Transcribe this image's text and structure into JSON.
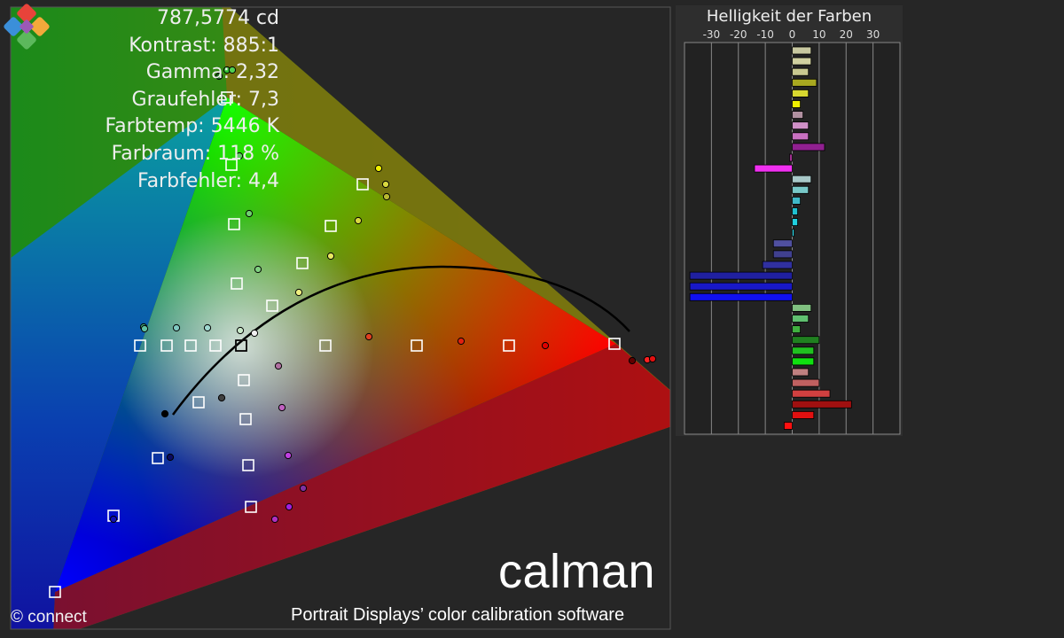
{
  "stats": {
    "luminance": "787,5774 cd",
    "contrast": "Kontrast: 885:1",
    "gamma": "Gamma: 2,32",
    "gray_error": "Graufehler: 7,3",
    "color_temp": "Farbtemp: 5446 K",
    "color_space": "Farbraum: 118 %",
    "color_error": "Farbfehler: 4,4"
  },
  "copyright": "© connect",
  "brand": {
    "name": "calman",
    "tagline": "Portrait Displays’ color calibration software",
    "logo_colors": [
      "#e8433a",
      "#f2a93b",
      "#5cb85c",
      "#3b8fd9",
      "#9b59b6"
    ]
  },
  "chart_data": [
    {
      "type": "scatter",
      "title": "",
      "description_kind": "CIE chromaticity gamut diagram",
      "series": [
        {
          "name": "",
          "marker": "open-square",
          "color": "#ffffff"
        },
        {
          "name": "",
          "marker": "filled-circle",
          "color": "measured"
        }
      ]
    },
    {
      "type": "bar",
      "title": "Helligkeit der Farben",
      "orientation": "horizontal",
      "xlim": [
        -40,
        40
      ],
      "xticks": [
        -30,
        -20,
        -10,
        0,
        10,
        20,
        30
      ],
      "grid": true,
      "values": [
        7,
        7,
        6,
        9,
        6,
        3,
        4,
        6,
        6,
        12,
        -1,
        -14,
        7,
        6,
        3,
        2,
        2,
        0,
        -7,
        -7,
        -11,
        -38,
        -38,
        -38,
        7,
        6,
        3,
        10,
        8,
        8,
        6,
        10,
        14,
        22,
        8,
        -3
      ],
      "colors": [
        "#c8c8a0",
        "#d0d0a0",
        "#c8c890",
        "#a8a820",
        "#d8d830",
        "#f0f000",
        "#b090a0",
        "#d090c8",
        "#c870c0",
        "#902090",
        "#a03090",
        "#f030f0",
        "#a8c8c8",
        "#78c8c8",
        "#40b8c8",
        "#20c0d0",
        "#20d0e0",
        "#30e0f0",
        "#5050a0",
        "#404090",
        "#3030a0",
        "#2020a0",
        "#1818c8",
        "#1010f0",
        "#80c080",
        "#60c070",
        "#40b040",
        "#208020",
        "#20c020",
        "#10e010",
        "#c08080",
        "#c06060",
        "#d04040",
        "#a01010",
        "#e01010",
        "#ff1010"
      ]
    }
  ]
}
